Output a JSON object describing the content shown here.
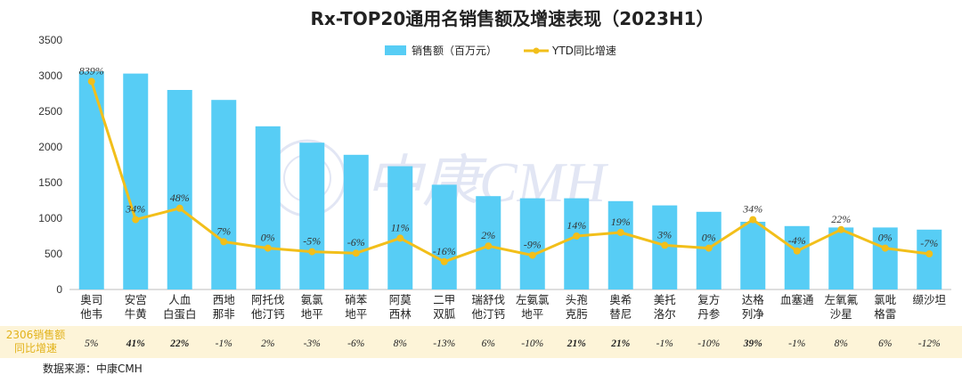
{
  "chart_data": {
    "type": "bar+line",
    "title": "Rx-TOP20通用名销售额及增速表现（2023H1）",
    "ylim": [
      0,
      3500
    ],
    "yticks": [
      0,
      500,
      1000,
      1500,
      2000,
      2500,
      3000,
      3500
    ],
    "legend": {
      "bar": "销售额（百万元）",
      "line": "YTD同比增速"
    },
    "categories": [
      [
        "奥司",
        "他韦"
      ],
      [
        "安宫",
        "牛黄"
      ],
      [
        "人血",
        "白蛋白"
      ],
      [
        "西地",
        "那非"
      ],
      [
        "阿托伐",
        "他汀钙"
      ],
      [
        "氨氯",
        "地平"
      ],
      [
        "硝苯",
        "地平"
      ],
      [
        "阿莫",
        "西林"
      ],
      [
        "二甲",
        "双胍"
      ],
      [
        "瑞舒伐",
        "他汀钙"
      ],
      [
        "左氨氯",
        "地平"
      ],
      [
        "头孢",
        "克肟"
      ],
      [
        "奥希",
        "替尼"
      ],
      [
        "美托",
        "洛尔"
      ],
      [
        "复方",
        "丹参"
      ],
      [
        "达格",
        "列净"
      ],
      [
        "血塞通"
      ],
      [
        "左氧氟",
        "沙星"
      ],
      [
        "氯吡",
        "格雷"
      ],
      [
        "缬沙坦"
      ]
    ],
    "sales": [
      3060,
      3030,
      2800,
      2660,
      2290,
      2060,
      1890,
      1730,
      1470,
      1310,
      1280,
      1280,
      1240,
      1180,
      1090,
      950,
      890,
      870,
      870,
      840
    ],
    "ytd_growth_values": [
      839,
      34,
      48,
      7,
      0,
      -5,
      -6,
      11,
      -16,
      2,
      -9,
      14,
      19,
      3,
      0,
      34,
      -4,
      22,
      0,
      -7
    ],
    "ytd_growth_labels": [
      "839%",
      "34%",
      "48%",
      "7%",
      "0%",
      "-5%",
      "-6%",
      "11%",
      "-16%",
      "2%",
      "-9%",
      "14%",
      "19%",
      "3%",
      "0%",
      "34%",
      "-4%",
      "22%",
      "0%",
      "-7%"
    ],
    "line_plot_y": [
      2920,
      980,
      1140,
      670,
      580,
      530,
      510,
      720,
      390,
      610,
      480,
      750,
      800,
      620,
      580,
      980,
      540,
      840,
      580,
      500
    ],
    "table_row_label": [
      "2306销售额",
      "同比增速"
    ],
    "yoy_2306": [
      "5%",
      "41%",
      "22%",
      "-1%",
      "2%",
      "-3%",
      "-6%",
      "8%",
      "-13%",
      "6%",
      "-10%",
      "21%",
      "21%",
      "-1%",
      "-10%",
      "39%",
      "-1%",
      "8%",
      "6%",
      "-12%"
    ],
    "yoy_2306_highlight": [
      false,
      true,
      true,
      false,
      false,
      false,
      false,
      false,
      false,
      false,
      false,
      true,
      true,
      false,
      false,
      true,
      false,
      false,
      false,
      false
    ]
  },
  "source_note": "数据来源：中康CMH",
  "watermark": "中康CMH",
  "colors": {
    "bar": "#57cdf5",
    "line": "#f2bf1a",
    "table_bg": "#fdf4d8",
    "highlight_text": "#1f9a2a",
    "row_label": "#e2b21a",
    "axis": "#bdbdbd",
    "watermark": "#dfe4f3"
  }
}
